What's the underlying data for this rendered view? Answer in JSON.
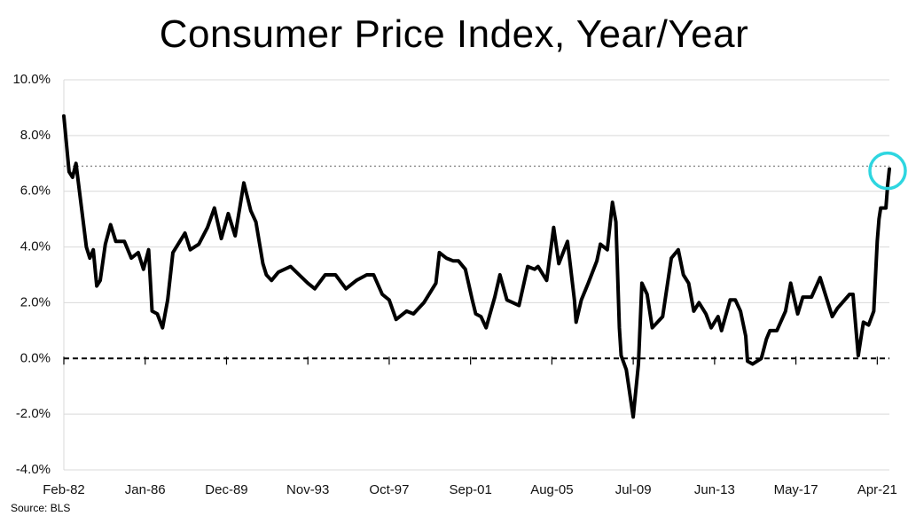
{
  "chart_data": {
    "type": "line",
    "title": "Consumer Price Index, Year/Year",
    "source": "Source: BLS",
    "xlabel": "",
    "ylabel": "",
    "ylim": [
      -4.0,
      10.0
    ],
    "yticks": [
      10.0,
      8.0,
      6.0,
      4.0,
      2.0,
      0.0,
      -2.0,
      -4.0
    ],
    "ytick_labels": [
      "10.0%",
      "8.0%",
      "6.0%",
      "4.0%",
      "2.0%",
      "0.0%",
      "-2.0%",
      "-4.0%"
    ],
    "xlim": [
      "1982-02",
      "2021-11"
    ],
    "xtick_labels": [
      "Feb-82",
      "Jan-86",
      "Dec-89",
      "Nov-93",
      "Oct-97",
      "Sep-01",
      "Aug-05",
      "Jul-09",
      "Jun-13",
      "May-17",
      "Apr-21"
    ],
    "xtick_values": [
      "1982-02",
      "1986-01",
      "1989-12",
      "1993-11",
      "1997-10",
      "2001-09",
      "2005-08",
      "2009-07",
      "2013-06",
      "2017-05",
      "2021-04"
    ],
    "grid": "horizontal",
    "reference_lines": [
      {
        "y": 0.0,
        "style": "dashed",
        "color": "#000000"
      },
      {
        "y": 6.9,
        "style": "dotted",
        "color": "#888888"
      }
    ],
    "highlight": {
      "x": "2021-11",
      "y": 6.8,
      "shape": "circle",
      "color": "#2ed6e0"
    },
    "series": [
      {
        "color": "#000000",
        "points": [
          [
            "1982-02",
            8.7
          ],
          [
            "1982-05",
            6.7
          ],
          [
            "1982-07",
            6.5
          ],
          [
            "1982-09",
            7.0
          ],
          [
            "1982-11",
            6.0
          ],
          [
            "1983-01",
            5.0
          ],
          [
            "1983-03",
            4.0
          ],
          [
            "1983-05",
            3.6
          ],
          [
            "1983-07",
            3.9
          ],
          [
            "1983-09",
            2.6
          ],
          [
            "1983-11",
            2.8
          ],
          [
            "1984-02",
            4.1
          ],
          [
            "1984-05",
            4.8
          ],
          [
            "1984-08",
            4.2
          ],
          [
            "1985-01",
            4.2
          ],
          [
            "1985-05",
            3.6
          ],
          [
            "1985-09",
            3.8
          ],
          [
            "1985-12",
            3.2
          ],
          [
            "1986-03",
            3.9
          ],
          [
            "1986-05",
            1.7
          ],
          [
            "1986-08",
            1.6
          ],
          [
            "1986-11",
            1.1
          ],
          [
            "1987-02",
            2.1
          ],
          [
            "1987-05",
            3.8
          ],
          [
            "1987-09",
            4.2
          ],
          [
            "1987-12",
            4.5
          ],
          [
            "1988-03",
            3.9
          ],
          [
            "1988-08",
            4.1
          ],
          [
            "1989-01",
            4.7
          ],
          [
            "1989-05",
            5.4
          ],
          [
            "1989-09",
            4.3
          ],
          [
            "1990-01",
            5.2
          ],
          [
            "1990-05",
            4.4
          ],
          [
            "1990-10",
            6.3
          ],
          [
            "1991-02",
            5.3
          ],
          [
            "1991-05",
            4.9
          ],
          [
            "1991-09",
            3.4
          ],
          [
            "1991-11",
            3.0
          ],
          [
            "1992-02",
            2.8
          ],
          [
            "1992-06",
            3.1
          ],
          [
            "1993-01",
            3.3
          ],
          [
            "1993-06",
            3.0
          ],
          [
            "1993-11",
            2.7
          ],
          [
            "1994-03",
            2.5
          ],
          [
            "1994-09",
            3.0
          ],
          [
            "1995-03",
            3.0
          ],
          [
            "1995-09",
            2.5
          ],
          [
            "1996-03",
            2.8
          ],
          [
            "1996-09",
            3.0
          ],
          [
            "1997-01",
            3.0
          ],
          [
            "1997-06",
            2.3
          ],
          [
            "1997-10",
            2.1
          ],
          [
            "1998-02",
            1.4
          ],
          [
            "1998-08",
            1.7
          ],
          [
            "1998-12",
            1.6
          ],
          [
            "1999-06",
            2.0
          ],
          [
            "2000-01",
            2.7
          ],
          [
            "2000-03",
            3.8
          ],
          [
            "2000-07",
            3.6
          ],
          [
            "2000-11",
            3.5
          ],
          [
            "2001-02",
            3.5
          ],
          [
            "2001-06",
            3.2
          ],
          [
            "2001-10",
            2.1
          ],
          [
            "2001-12",
            1.6
          ],
          [
            "2002-03",
            1.5
          ],
          [
            "2002-06",
            1.1
          ],
          [
            "2002-11",
            2.2
          ],
          [
            "2003-02",
            3.0
          ],
          [
            "2003-06",
            2.1
          ],
          [
            "2004-01",
            1.9
          ],
          [
            "2004-06",
            3.3
          ],
          [
            "2004-10",
            3.2
          ],
          [
            "2004-12",
            3.3
          ],
          [
            "2005-05",
            2.8
          ],
          [
            "2005-09",
            4.7
          ],
          [
            "2005-12",
            3.4
          ],
          [
            "2006-05",
            4.2
          ],
          [
            "2006-09",
            2.1
          ],
          [
            "2006-10",
            1.3
          ],
          [
            "2007-01",
            2.1
          ],
          [
            "2007-05",
            2.7
          ],
          [
            "2007-10",
            3.5
          ],
          [
            "2007-12",
            4.1
          ],
          [
            "2008-04",
            3.9
          ],
          [
            "2008-07",
            5.6
          ],
          [
            "2008-09",
            4.9
          ],
          [
            "2008-11",
            1.1
          ],
          [
            "2008-12",
            0.1
          ],
          [
            "2009-03",
            -0.4
          ],
          [
            "2009-07",
            -2.1
          ],
          [
            "2009-10",
            -0.2
          ],
          [
            "2009-12",
            2.7
          ],
          [
            "2010-03",
            2.3
          ],
          [
            "2010-06",
            1.1
          ],
          [
            "2010-12",
            1.5
          ],
          [
            "2011-05",
            3.6
          ],
          [
            "2011-09",
            3.9
          ],
          [
            "2011-12",
            3.0
          ],
          [
            "2012-03",
            2.7
          ],
          [
            "2012-06",
            1.7
          ],
          [
            "2012-09",
            2.0
          ],
          [
            "2013-01",
            1.6
          ],
          [
            "2013-04",
            1.1
          ],
          [
            "2013-08",
            1.5
          ],
          [
            "2013-10",
            1.0
          ],
          [
            "2014-03",
            2.1
          ],
          [
            "2014-06",
            2.1
          ],
          [
            "2014-09",
            1.7
          ],
          [
            "2014-12",
            0.8
          ],
          [
            "2015-01",
            -0.1
          ],
          [
            "2015-04",
            -0.2
          ],
          [
            "2015-09",
            0.0
          ],
          [
            "2015-12",
            0.7
          ],
          [
            "2016-02",
            1.0
          ],
          [
            "2016-06",
            1.0
          ],
          [
            "2016-11",
            1.7
          ],
          [
            "2017-02",
            2.7
          ],
          [
            "2017-06",
            1.6
          ],
          [
            "2017-09",
            2.2
          ],
          [
            "2018-02",
            2.2
          ],
          [
            "2018-07",
            2.9
          ],
          [
            "2018-12",
            1.9
          ],
          [
            "2019-02",
            1.5
          ],
          [
            "2019-05",
            1.8
          ],
          [
            "2019-12",
            2.3
          ],
          [
            "2020-02",
            2.3
          ],
          [
            "2020-05",
            0.1
          ],
          [
            "2020-08",
            1.3
          ],
          [
            "2020-11",
            1.2
          ],
          [
            "2021-02",
            1.7
          ],
          [
            "2021-04",
            4.2
          ],
          [
            "2021-05",
            5.0
          ],
          [
            "2021-06",
            5.4
          ],
          [
            "2021-09",
            5.4
          ],
          [
            "2021-10",
            6.2
          ],
          [
            "2021-11",
            6.8
          ]
        ]
      }
    ]
  }
}
